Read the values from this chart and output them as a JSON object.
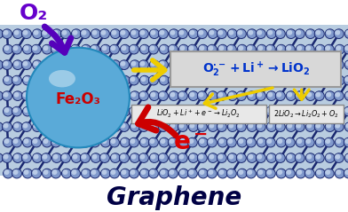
{
  "fig_width": 3.92,
  "fig_height": 2.39,
  "dpi": 100,
  "bg_color": "#ffffff",
  "graphene_bg": "#b8cce0",
  "graphene_mesh_dark": "#1a2870",
  "graphene_node_light": "#c8d8ee",
  "graphene_node_mid": "#8099cc",
  "graphene_node_dark": "#1a2870",
  "fe2o3_circle_color": "#5aaad8",
  "fe2o3_text": "Fe₂O₃",
  "fe2o3_text_color": "#cc0000",
  "o2_text": "O₂",
  "o2_text_color": "#6600cc",
  "eminus_text": "e⁻",
  "eminus_text_color": "#dd0000",
  "reaction1_main": "O₂",
  "reaction1_super": "•⁻",
  "reaction1_rest": " + Li⁺ → LiO₂",
  "reaction2_text": "LiO₂ + Li⁺ + e⁻ → Li₂O₂",
  "reaction3_text": "2LiO₂ → Li₂O₂ + O₂",
  "graphene_label": "Graphene",
  "graphene_label_color": "#000044",
  "arrow_o2_color": "#5500bb",
  "arrow_eminus_color": "#cc0000",
  "arrow_yellow_color": "#eecc00",
  "box_bg": "#d8d8d8",
  "box_edge": "#999999",
  "box2_bg": "#e8e8e8",
  "box2_edge": "#888888"
}
